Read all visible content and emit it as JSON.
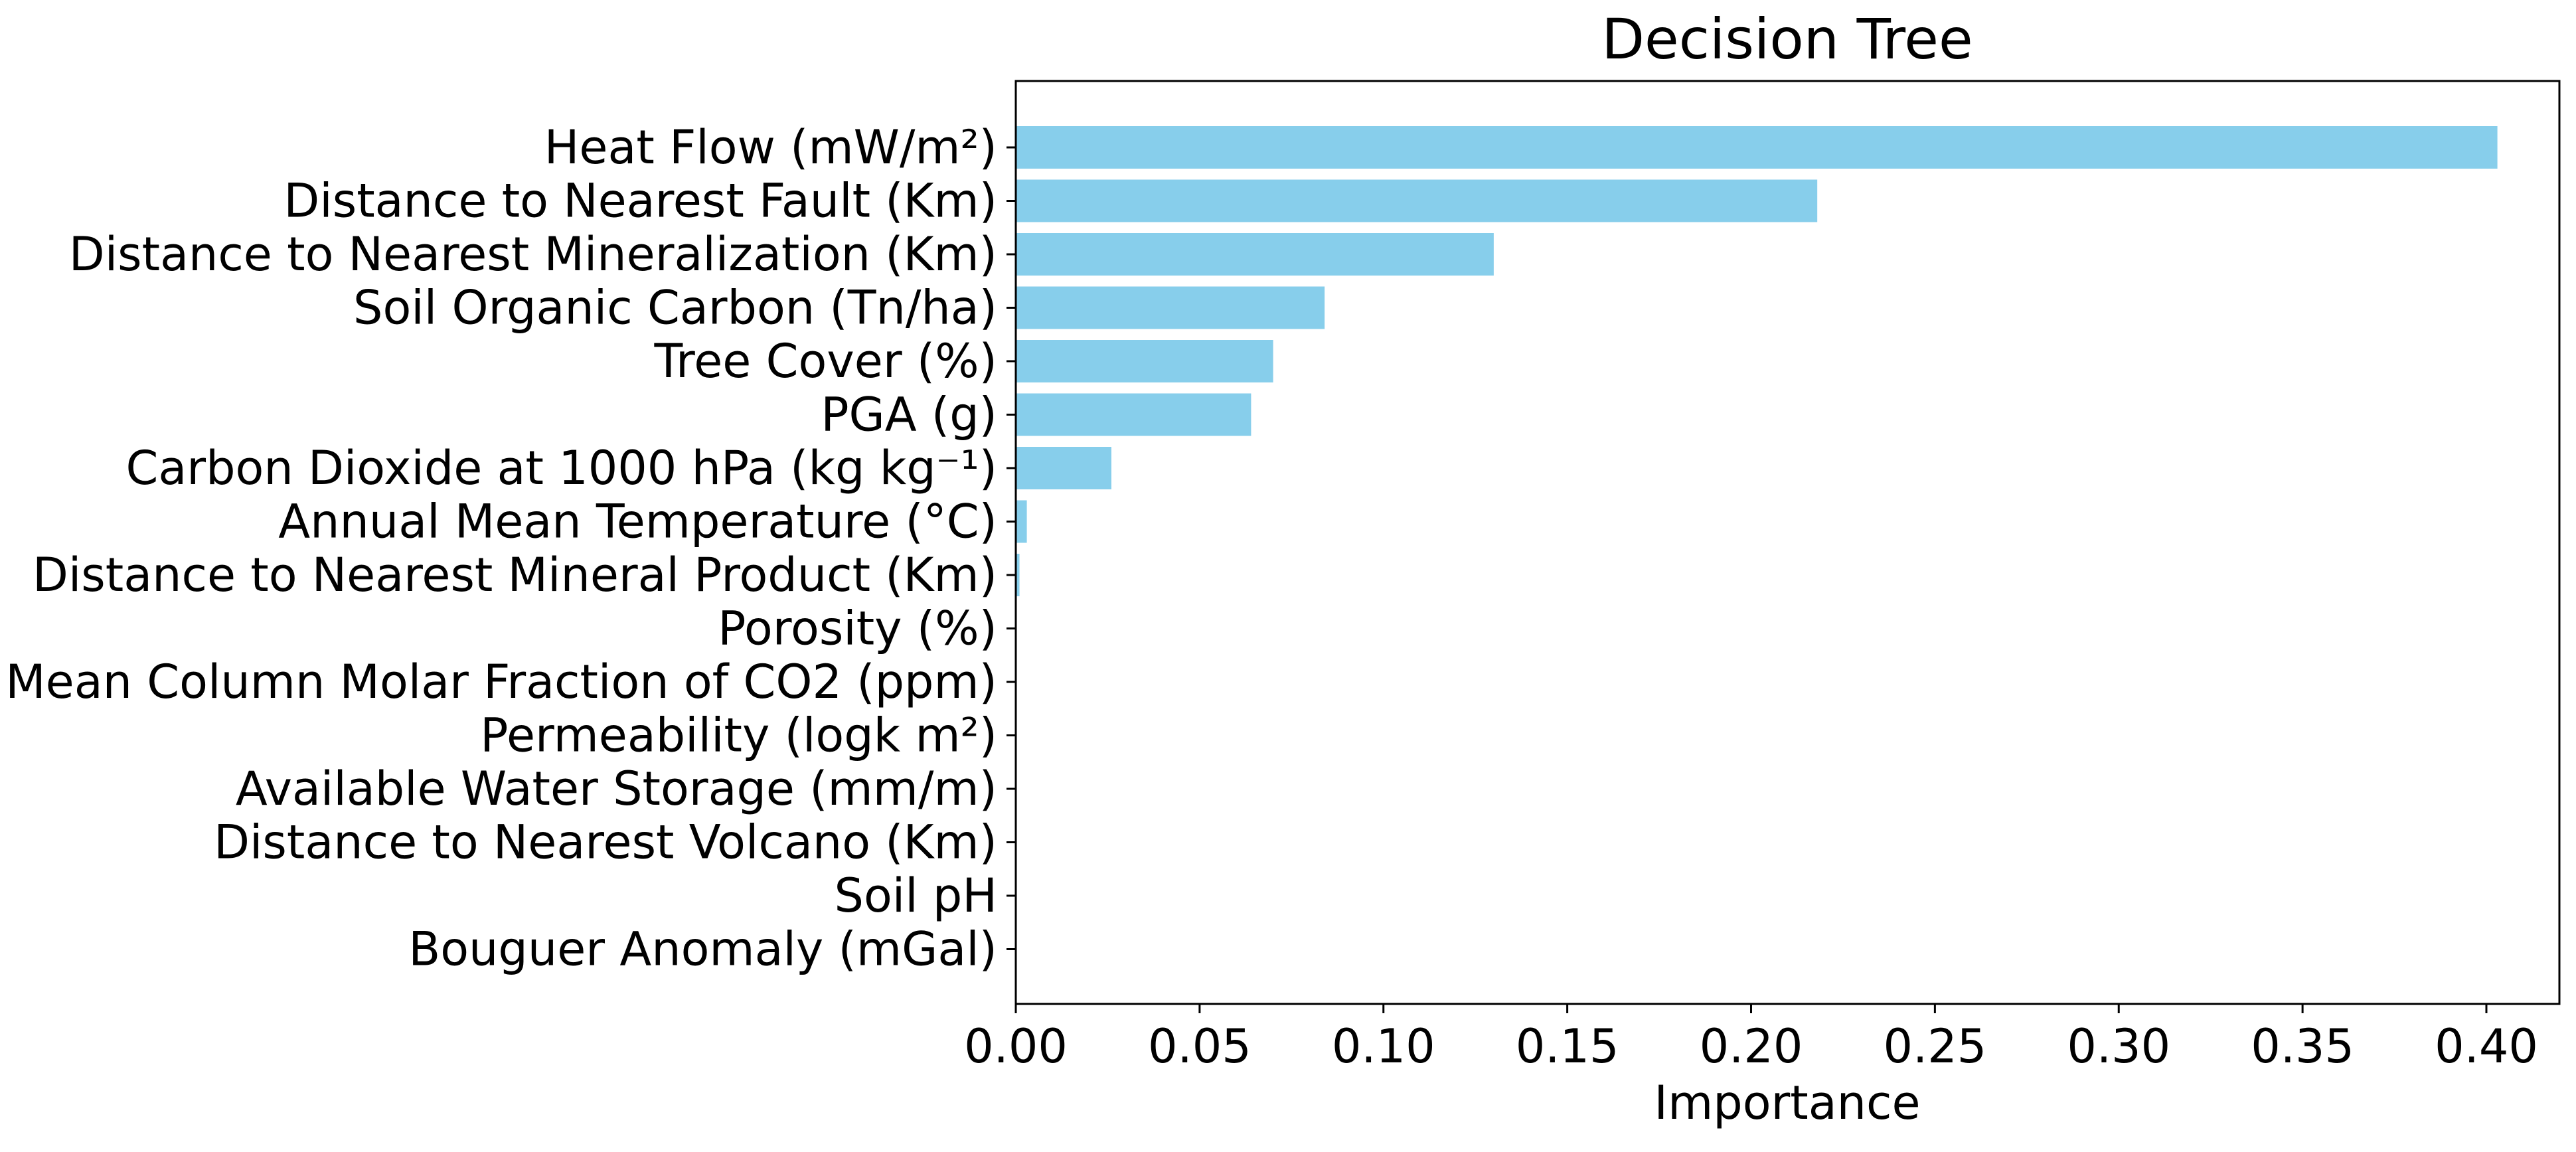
{
  "chart_data": {
    "type": "bar",
    "orientation": "horizontal",
    "title": "Decision Tree",
    "xlabel": "Importance",
    "ylabel": "",
    "xlim": [
      0.0,
      0.42
    ],
    "xticks": [
      "0.00",
      "0.05",
      "0.10",
      "0.15",
      "0.20",
      "0.25",
      "0.30",
      "0.35",
      "0.40"
    ],
    "grid": false,
    "bar_color": "#87CEEB",
    "categories": [
      "Heat Flow (mW/m²)",
      "Distance to Nearest Fault (Km)",
      "Distance to Nearest Mineralization (Km)",
      "Soil Organic Carbon (Tn/ha)",
      "Tree Cover (%)",
      "PGA (g)",
      "Carbon Dioxide at 1000 hPa (kg kg⁻¹)",
      "Annual Mean Temperature (°C)",
      "Distance to Nearest Mineral Product (Km)",
      "Porosity (%)",
      "Mean Column Molar Fraction of CO2 (ppm)",
      "Permeability (logk m²)",
      "Available Water Storage (mm/m)",
      "Distance to Nearest Volcano (Km)",
      "Soil pH",
      "Bouguer Anomaly (mGal)"
    ],
    "values": [
      0.403,
      0.218,
      0.13,
      0.084,
      0.07,
      0.064,
      0.026,
      0.003,
      0.001,
      0.0,
      0.0,
      0.0,
      0.0,
      0.0,
      0.0,
      0.0
    ]
  }
}
